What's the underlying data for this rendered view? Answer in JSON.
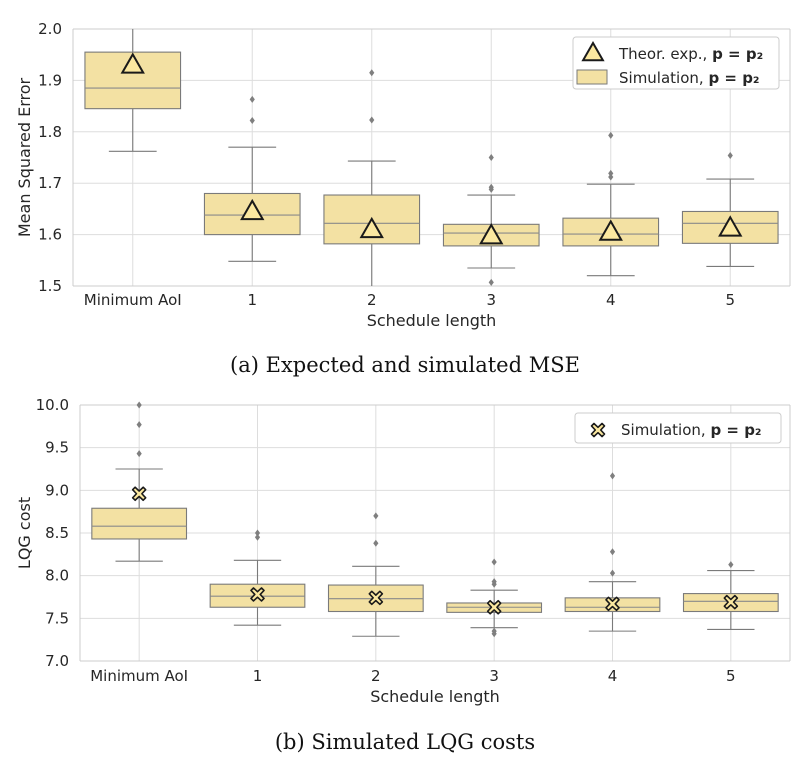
{
  "colors": {
    "box_fill": "#f3e1a3",
    "box_edge": "#7a7a7a",
    "median": "#8a8a8a",
    "flier": "#7f7f7f",
    "grid": "#dddddd",
    "marker_fill": "#fbe8a0",
    "marker_edge": "#1a1a1a"
  },
  "chart_data": [
    {
      "type": "box",
      "caption": "(a) Expected and simulated MSE",
      "xlabel": "Schedule length",
      "ylabel": "Mean Squared Error",
      "ylim": [
        1.5,
        2.0
      ],
      "yticks": [
        "1.5",
        "1.6",
        "1.7",
        "1.8",
        "1.9",
        "2.0"
      ],
      "grid": true,
      "legend_position": "top-right",
      "categories": [
        "Minimum AoI",
        "1",
        "2",
        "3",
        "4",
        "5"
      ],
      "boxes": [
        {
          "q1": 1.845,
          "median": 1.885,
          "q3": 1.955,
          "whisker_low": 1.762,
          "whisker_high": 2.0,
          "fliers": []
        },
        {
          "q1": 1.6,
          "median": 1.638,
          "q3": 1.68,
          "whisker_low": 1.548,
          "whisker_high": 1.77,
          "fliers": [
            1.822,
            1.863
          ]
        },
        {
          "q1": 1.582,
          "median": 1.622,
          "q3": 1.677,
          "whisker_low": 1.5,
          "whisker_high": 1.743,
          "fliers": [
            1.823,
            1.915
          ]
        },
        {
          "q1": 1.578,
          "median": 1.603,
          "q3": 1.62,
          "whisker_low": 1.535,
          "whisker_high": 1.677,
          "fliers": [
            1.507,
            1.688,
            1.692,
            1.75
          ]
        },
        {
          "q1": 1.578,
          "median": 1.601,
          "q3": 1.632,
          "whisker_low": 1.52,
          "whisker_high": 1.698,
          "fliers": [
            1.712,
            1.719,
            1.793
          ]
        },
        {
          "q1": 1.583,
          "median": 1.622,
          "q3": 1.645,
          "whisker_low": 1.538,
          "whisker_high": 1.708,
          "fliers": [
            1.754
          ]
        }
      ],
      "markers": {
        "shape": "triangle",
        "values": [
          1.93,
          1.645,
          1.61,
          1.598,
          1.605,
          1.613
        ]
      },
      "legend": [
        {
          "shape": "triangle",
          "label": "Theor. exp.,",
          "formula": "p = p₂"
        },
        {
          "shape": "box",
          "label": "Simulation,",
          "formula": "p = p₂"
        }
      ]
    },
    {
      "type": "box",
      "caption": "(b) Simulated LQG costs",
      "xlabel": "Schedule length",
      "ylabel": "LQG cost",
      "ylim": [
        7.0,
        10.0
      ],
      "yticks": [
        "7.0",
        "7.5",
        "8.0",
        "8.5",
        "9.0",
        "9.5",
        "10.0"
      ],
      "grid": true,
      "legend_position": "top-right",
      "categories": [
        "Minimum AoI",
        "1",
        "2",
        "3",
        "4",
        "5"
      ],
      "boxes": [
        {
          "q1": 8.43,
          "median": 8.58,
          "q3": 8.79,
          "whisker_low": 8.17,
          "whisker_high": 9.25,
          "fliers": [
            9.43,
            9.77,
            10.0
          ]
        },
        {
          "q1": 7.63,
          "median": 7.76,
          "q3": 7.9,
          "whisker_low": 7.42,
          "whisker_high": 8.18,
          "fliers": [
            8.45,
            8.5
          ]
        },
        {
          "q1": 7.58,
          "median": 7.73,
          "q3": 7.89,
          "whisker_low": 7.29,
          "whisker_high": 8.11,
          "fliers": [
            8.38,
            8.7
          ]
        },
        {
          "q1": 7.57,
          "median": 7.63,
          "q3": 7.68,
          "whisker_low": 7.39,
          "whisker_high": 7.83,
          "fliers": [
            7.32,
            7.35,
            7.9,
            7.93,
            8.16
          ]
        },
        {
          "q1": 7.58,
          "median": 7.63,
          "q3": 7.74,
          "whisker_low": 7.35,
          "whisker_high": 7.93,
          "fliers": [
            8.03,
            8.28,
            9.17
          ]
        },
        {
          "q1": 7.58,
          "median": 7.7,
          "q3": 7.79,
          "whisker_low": 7.37,
          "whisker_high": 8.06,
          "fliers": [
            8.13
          ]
        }
      ],
      "markers": {
        "shape": "x",
        "values": [
          8.96,
          7.78,
          7.74,
          7.63,
          7.67,
          7.69
        ]
      },
      "legend": [
        {
          "shape": "x",
          "label": "Simulation,",
          "formula": "p = p₂"
        }
      ]
    }
  ]
}
